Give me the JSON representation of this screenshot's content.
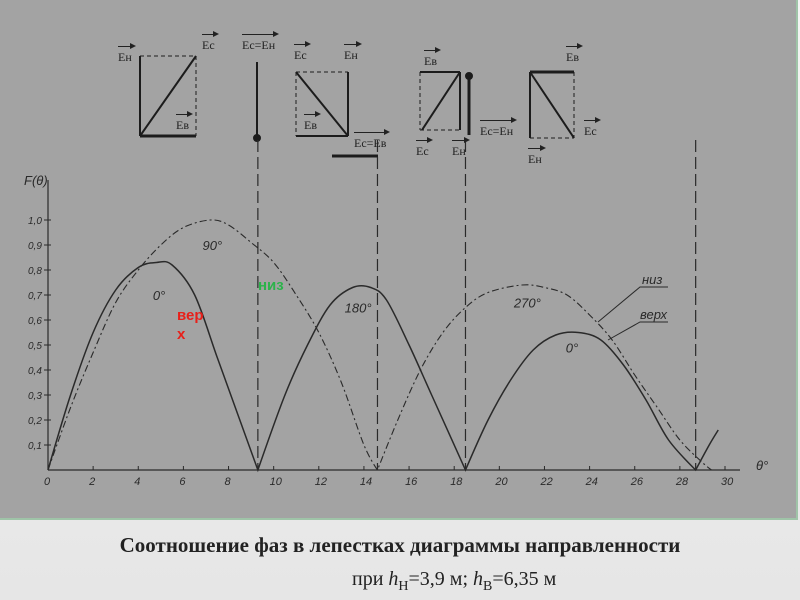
{
  "caption": {
    "line1": "Соотношение фаз в лепестках диаграммы направленности",
    "line2_prefix": "при ",
    "h_n_symbol": "h",
    "h_n_sub": "Н",
    "h_n_value": "=3,9 м; ",
    "h_v_symbol": "h",
    "h_v_sub": "В",
    "h_v_value": "=6,35 м"
  },
  "annotations": {
    "top": "вер\nх",
    "top_color": "#e8201a",
    "bottom": "низ",
    "bottom_color": "#2bb34a"
  },
  "vector_labels": {
    "d1": [
      "Eн",
      "Ec",
      "Eв"
    ],
    "d2": [
      "Ec=Eн"
    ],
    "d3": [
      "Ec",
      "Eн",
      "Eв",
      "Ec=Eв"
    ],
    "d4": [
      "Eв",
      "Ec",
      "Eн",
      "Ec=Eн"
    ],
    "d5": [
      "Eв",
      "Ec",
      "Eн"
    ]
  },
  "chart_data": {
    "type": "line",
    "ylabel": "F(θ)",
    "xlabel": "θ°",
    "xlim": [
      0,
      30
    ],
    "ylim": [
      0,
      1.0
    ],
    "x_ticks": [
      "0",
      "2",
      "4",
      "6",
      "8",
      "10",
      "12",
      "14",
      "16",
      "18",
      "20",
      "22",
      "24",
      "26",
      "28",
      "30"
    ],
    "y_ticks": [
      "0,1",
      "0,2",
      "0,3",
      "0,4",
      "0,5",
      "0,6",
      "0,7",
      "0,8",
      "0,9",
      "1,0"
    ],
    "grid": false,
    "series": [
      {
        "name": "верх",
        "style": "solid",
        "points": [
          [
            0,
            0
          ],
          [
            1,
            0.3
          ],
          [
            2,
            0.55
          ],
          [
            3,
            0.72
          ],
          [
            4,
            0.81
          ],
          [
            4.8,
            0.83
          ],
          [
            5.5,
            0.82
          ],
          [
            6.5,
            0.7
          ],
          [
            7.5,
            0.45
          ],
          [
            8.5,
            0.2
          ],
          [
            9.3,
            0
          ],
          [
            10.5,
            0.3
          ],
          [
            11.5,
            0.5
          ],
          [
            12.5,
            0.66
          ],
          [
            13.5,
            0.73
          ],
          [
            14.3,
            0.73
          ],
          [
            15,
            0.68
          ],
          [
            16,
            0.5
          ],
          [
            17,
            0.3
          ],
          [
            18.5,
            0
          ],
          [
            19.5,
            0.2
          ],
          [
            20.5,
            0.36
          ],
          [
            21.5,
            0.48
          ],
          [
            22.5,
            0.54
          ],
          [
            23.5,
            0.55
          ],
          [
            24.5,
            0.52
          ],
          [
            25.5,
            0.42
          ],
          [
            26.5,
            0.28
          ],
          [
            27.5,
            0.12
          ],
          [
            28.7,
            0
          ],
          [
            29.3,
            0.1
          ],
          [
            29.7,
            0.16
          ]
        ]
      },
      {
        "name": "низ",
        "style": "dash-dot",
        "points": [
          [
            0,
            0
          ],
          [
            1,
            0.25
          ],
          [
            2,
            0.47
          ],
          [
            3,
            0.67
          ],
          [
            4,
            0.8
          ],
          [
            5,
            0.9
          ],
          [
            6,
            0.97
          ],
          [
            7.2,
            1.0
          ],
          [
            8,
            0.98
          ],
          [
            9,
            0.91
          ],
          [
            10,
            0.83
          ],
          [
            11,
            0.7
          ],
          [
            12,
            0.55
          ],
          [
            13,
            0.35
          ],
          [
            14,
            0.1
          ],
          [
            14.6,
            0
          ],
          [
            15.5,
            0.2
          ],
          [
            16.5,
            0.4
          ],
          [
            17.5,
            0.55
          ],
          [
            18.5,
            0.65
          ],
          [
            19.5,
            0.71
          ],
          [
            21,
            0.74
          ],
          [
            22,
            0.73
          ],
          [
            23,
            0.7
          ],
          [
            24,
            0.62
          ],
          [
            25,
            0.52
          ],
          [
            26,
            0.38
          ],
          [
            27,
            0.25
          ],
          [
            28,
            0.12
          ],
          [
            29,
            0.03
          ],
          [
            29.4,
            0
          ]
        ]
      }
    ],
    "lobe_labels": [
      {
        "text": "0°",
        "x": 5.0,
        "y": 0.68
      },
      {
        "text": "90°",
        "x": 7.2,
        "y": 0.88
      },
      {
        "text": "180°",
        "x": 13.5,
        "y": 0.63
      },
      {
        "text": "270°",
        "x": 21.0,
        "y": 0.65
      },
      {
        "text": "0°",
        "x": 23.3,
        "y": 0.47
      }
    ],
    "phase_lines_x": [
      9.3,
      14.6,
      18.5,
      28.7
    ],
    "legend": [
      "низ",
      "верх"
    ]
  }
}
